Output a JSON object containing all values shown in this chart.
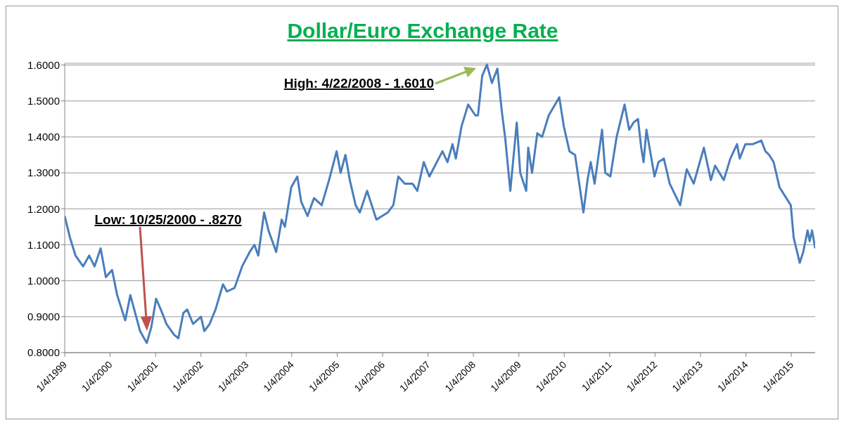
{
  "chart_data": {
    "type": "line",
    "title": "Dollar/Euro Exchange Rate",
    "x": [
      "1999-01-04",
      "1999-02-15",
      "1999-04-01",
      "1999-06-01",
      "1999-07-20",
      "1999-09-01",
      "1999-10-20",
      "1999-12-01",
      "2000-01-20",
      "2000-03-01",
      "2000-05-05",
      "2000-06-15",
      "2000-08-01",
      "2000-09-01",
      "2000-10-25",
      "2000-11-30",
      "2001-01-08",
      "2001-02-15",
      "2001-04-01",
      "2001-06-01",
      "2001-07-06",
      "2001-08-15",
      "2001-09-15",
      "2001-11-01",
      "2002-01-04",
      "2002-01-31",
      "2002-03-15",
      "2002-05-01",
      "2002-06-30",
      "2002-08-01",
      "2002-10-01",
      "2002-12-01",
      "2003-01-31",
      "2003-03-10",
      "2003-04-10",
      "2003-05-27",
      "2003-07-01",
      "2003-09-01",
      "2003-10-15",
      "2003-11-10",
      "2003-12-31",
      "2004-02-18",
      "2004-03-20",
      "2004-05-10",
      "2004-07-01",
      "2004-09-01",
      "2004-10-30",
      "2004-12-30",
      "2005-01-31",
      "2005-03-11",
      "2005-04-15",
      "2005-06-01",
      "2005-07-05",
      "2005-09-01",
      "2005-11-15",
      "2005-12-31",
      "2006-02-15",
      "2006-03-31",
      "2006-05-10",
      "2006-07-01",
      "2006-09-01",
      "2006-10-10",
      "2006-12-01",
      "2007-01-15",
      "2007-04-30",
      "2007-06-10",
      "2007-07-20",
      "2007-08-16",
      "2007-10-01",
      "2007-11-23",
      "2008-01-20",
      "2008-02-10",
      "2008-03-15",
      "2008-04-22",
      "2008-06-01",
      "2008-07-15",
      "2008-08-20",
      "2008-09-15",
      "2008-10-27",
      "2008-12-18",
      "2009-01-15",
      "2009-03-04",
      "2009-03-20",
      "2009-04-20",
      "2009-06-01",
      "2009-07-10",
      "2009-09-01",
      "2009-11-25",
      "2009-12-31",
      "2010-02-15",
      "2010-04-01",
      "2010-06-07",
      "2010-07-10",
      "2010-08-05",
      "2010-09-05",
      "2010-11-04",
      "2010-11-30",
      "2011-01-10",
      "2011-03-01",
      "2011-05-04",
      "2011-06-10",
      "2011-07-15",
      "2011-08-20",
      "2011-09-15",
      "2011-10-04",
      "2011-10-27",
      "2011-12-31",
      "2012-02-01",
      "2012-03-15",
      "2012-05-01",
      "2012-07-24",
      "2012-09-15",
      "2012-11-10",
      "2013-01-31",
      "2013-03-28",
      "2013-05-01",
      "2013-07-10",
      "2013-09-01",
      "2013-10-25",
      "2013-11-15",
      "2013-12-31",
      "2014-03-01",
      "2014-05-08",
      "2014-06-10",
      "2014-07-10",
      "2014-08-15",
      "2014-10-01",
      "2014-12-31",
      "2015-01-23",
      "2015-03-13",
      "2015-04-10",
      "2015-05-15",
      "2015-06-01",
      "2015-06-20",
      "2015-07-15"
    ],
    "series": [
      {
        "color": "#4a7ebb",
        "values": [
          1.18,
          1.12,
          1.07,
          1.04,
          1.07,
          1.04,
          1.09,
          1.01,
          1.03,
          0.96,
          0.89,
          0.96,
          0.9,
          0.86,
          0.827,
          0.87,
          0.95,
          0.92,
          0.88,
          0.85,
          0.84,
          0.91,
          0.92,
          0.88,
          0.9,
          0.86,
          0.88,
          0.92,
          0.99,
          0.97,
          0.98,
          1.04,
          1.08,
          1.1,
          1.07,
          1.19,
          1.14,
          1.08,
          1.17,
          1.15,
          1.26,
          1.29,
          1.22,
          1.18,
          1.23,
          1.21,
          1.28,
          1.36,
          1.3,
          1.35,
          1.28,
          1.21,
          1.19,
          1.25,
          1.17,
          1.18,
          1.19,
          1.21,
          1.29,
          1.27,
          1.27,
          1.25,
          1.33,
          1.29,
          1.36,
          1.33,
          1.38,
          1.34,
          1.43,
          1.49,
          1.46,
          1.46,
          1.57,
          1.601,
          1.55,
          1.59,
          1.47,
          1.4,
          1.25,
          1.44,
          1.3,
          1.25,
          1.37,
          1.3,
          1.41,
          1.4,
          1.46,
          1.51,
          1.43,
          1.36,
          1.35,
          1.19,
          1.28,
          1.33,
          1.27,
          1.42,
          1.3,
          1.29,
          1.4,
          1.49,
          1.42,
          1.44,
          1.45,
          1.37,
          1.33,
          1.42,
          1.29,
          1.33,
          1.34,
          1.27,
          1.21,
          1.31,
          1.27,
          1.37,
          1.28,
          1.32,
          1.28,
          1.34,
          1.38,
          1.34,
          1.38,
          1.38,
          1.39,
          1.36,
          1.35,
          1.33,
          1.26,
          1.21,
          1.12,
          1.05,
          1.08,
          1.14,
          1.11,
          1.14,
          1.09
        ]
      }
    ],
    "xlim": [
      "1999-01-04",
      "2015-07-15"
    ],
    "xticks": [
      {
        "value": "1999-01-04",
        "label": "1/4/1999"
      },
      {
        "value": "2000-01-04",
        "label": "1/4/2000"
      },
      {
        "value": "2001-01-04",
        "label": "1/4/2001"
      },
      {
        "value": "2002-01-04",
        "label": "1/4/2002"
      },
      {
        "value": "2003-01-04",
        "label": "1/4/2003"
      },
      {
        "value": "2004-01-04",
        "label": "1/4/2004"
      },
      {
        "value": "2005-01-04",
        "label": "1/4/2005"
      },
      {
        "value": "2006-01-04",
        "label": "1/4/2006"
      },
      {
        "value": "2007-01-04",
        "label": "1/4/2007"
      },
      {
        "value": "2008-01-04",
        "label": "1/4/2008"
      },
      {
        "value": "2009-01-04",
        "label": "1/4/2009"
      },
      {
        "value": "2010-01-04",
        "label": "1/4/2010"
      },
      {
        "value": "2011-01-04",
        "label": "1/4/2011"
      },
      {
        "value": "2012-01-04",
        "label": "1/4/2012"
      },
      {
        "value": "2013-01-04",
        "label": "1/4/2013"
      },
      {
        "value": "2014-01-04",
        "label": "1/4/2014"
      },
      {
        "value": "2015-01-04",
        "label": "1/4/2015"
      }
    ],
    "ylim": [
      0.8,
      1.605
    ],
    "yticks": [
      {
        "value": 0.8,
        "label": "0.8000"
      },
      {
        "value": 0.9,
        "label": "0.9000"
      },
      {
        "value": 1.0,
        "label": "1.0000"
      },
      {
        "value": 1.1,
        "label": "1.1000"
      },
      {
        "value": 1.2,
        "label": "1.2000"
      },
      {
        "value": 1.3,
        "label": "1.3000"
      },
      {
        "value": 1.4,
        "label": "1.4000"
      },
      {
        "value": 1.5,
        "label": "1.5000"
      },
      {
        "value": 1.6,
        "label": "1.6000"
      }
    ],
    "grid": "y",
    "annotations": [
      "Low: 10/25/2000 - .8270",
      "High: 4/22/2008 - 1.6010"
    ]
  }
}
